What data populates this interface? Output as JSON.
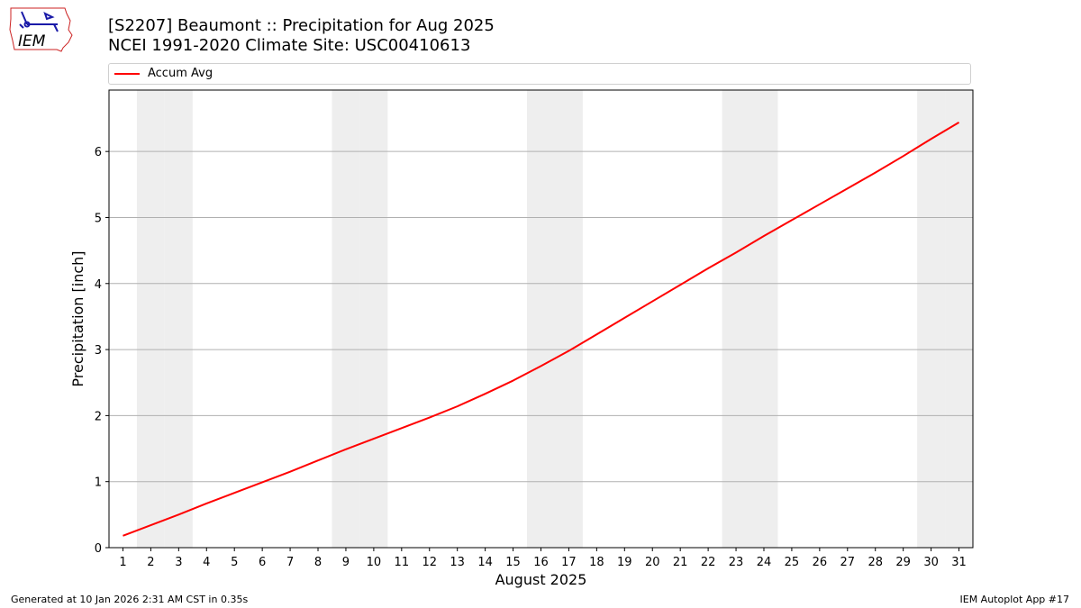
{
  "title_line1": "[S2207] Beaumont :: Precipitation for Aug 2025",
  "title_line2": "NCEI 1991-2020 Climate Site: USC00410613",
  "logo_text": "IEM",
  "footer": {
    "generated": "Generated at 10 Jan 2026 2:31 AM CST in 0.35s",
    "app": "IEM Autoplot App #17"
  },
  "colors": {
    "series": "#ff0000",
    "weekend_band": "#eeeeee",
    "grid": "#b0b0b0",
    "logo_red": "#cc2222",
    "logo_blue": "#1a1aa8"
  },
  "chart_data": {
    "type": "line",
    "xlabel": "August 2025",
    "ylabel": "Precipitation [inch]",
    "xlim": [
      0.5,
      31.5
    ],
    "ylim": [
      0,
      6.93
    ],
    "yticks": [
      0,
      1,
      2,
      3,
      4,
      5,
      6
    ],
    "y_grid": true,
    "legend_placement": "top",
    "x": [
      1,
      2,
      3,
      4,
      5,
      6,
      7,
      8,
      9,
      10,
      11,
      12,
      13,
      14,
      15,
      16,
      17,
      18,
      19,
      20,
      21,
      22,
      23,
      24,
      25,
      26,
      27,
      28,
      29,
      30,
      31
    ],
    "weekend_days": [
      2,
      3,
      9,
      10,
      16,
      17,
      23,
      24,
      30,
      31
    ],
    "series": [
      {
        "name": "Accum Avg",
        "values": [
          0.18,
          0.34,
          0.5,
          0.67,
          0.83,
          0.99,
          1.15,
          1.32,
          1.49,
          1.65,
          1.81,
          1.97,
          2.14,
          2.33,
          2.53,
          2.75,
          2.98,
          3.23,
          3.48,
          3.73,
          3.98,
          4.23,
          4.47,
          4.72,
          4.96,
          5.2,
          5.44,
          5.68,
          5.93,
          6.19,
          6.44
        ]
      }
    ]
  }
}
